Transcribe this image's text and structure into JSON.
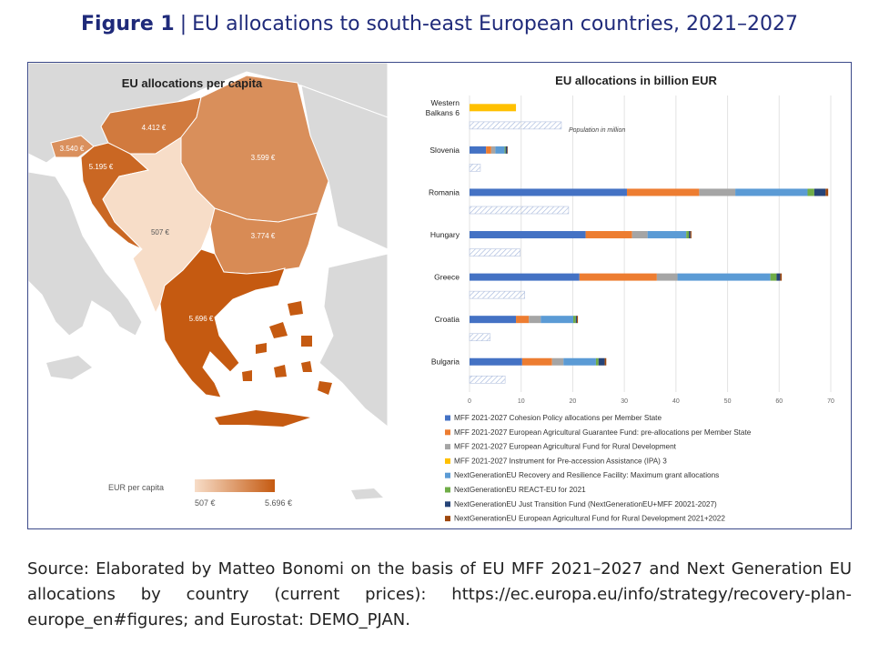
{
  "figure": {
    "label": "Figure 1",
    "separator": "|",
    "title": "EU allocations to south-east European countries, 2021–2027",
    "source": "Source: Elaborated by Matteo Bonomi on the basis of EU MFF 2021–2027 and Next Generation EU allocations by country (current prices): https://ec.europa.eu/info/strategy/recovery-plan-europe_en#figures; and Eurostat: DEMO_PJAN."
  },
  "colors": {
    "frame": "#3c4a8a",
    "title": "#1f2a7a",
    "map_land_other": "#d9d9d9",
    "map_sea": "#ffffff",
    "map_scale_low": "#f7ddc8",
    "map_scale_high": "#c55a11"
  },
  "chart_data": [
    {
      "type": "heatmap",
      "title": "EU allocations per capita",
      "unit": "€",
      "labels": [
        "4.412 €",
        "3.540 €",
        "5.195 €",
        "3.599 €",
        "507 €",
        "3.774 €",
        "5.696 €"
      ],
      "values": [
        4412,
        3540,
        5195,
        3599,
        507,
        3774,
        5696
      ],
      "legend": {
        "title": "EUR per capita",
        "min_label": "507 €",
        "max_label": "5.696 €",
        "min": 507,
        "max": 5696
      }
    },
    {
      "type": "bar",
      "orientation": "horizontal",
      "stacked": true,
      "title": "EU allocations in billion EUR",
      "categories": [
        "Western Balkans 6",
        "Slovenia",
        "Romania",
        "Hungary",
        "Greece",
        "Croatia",
        "Bulgaria"
      ],
      "category_lines": [
        [
          "Western",
          "Balkans 6"
        ],
        [
          "Slovenia"
        ],
        [
          "Romania"
        ],
        [
          "Hungary"
        ],
        [
          "Greece"
        ],
        [
          "Croatia"
        ],
        [
          "Bulgaria"
        ]
      ],
      "xlim": [
        0,
        70
      ],
      "xticks": [
        0,
        10,
        20,
        30,
        40,
        50,
        60,
        70
      ],
      "grid": true,
      "legend_position": "bottom",
      "series": [
        {
          "name": "MFF 2021-2027 Cohesion Policy allocations per Member State",
          "color": "#4472c4",
          "values": [
            0,
            3.2,
            30.5,
            22.5,
            21.3,
            9.0,
            10.2
          ]
        },
        {
          "name": "MFF 2021-2027 European Agricultural Guarantee Fund: pre-allocations per Member State",
          "color": "#ed7d31",
          "values": [
            0,
            1.0,
            14.0,
            9.0,
            15.0,
            2.5,
            5.8
          ]
        },
        {
          "name": "MFF 2021-2027 European Agricultural Fund for Rural Development",
          "color": "#a5a5a5",
          "values": [
            0,
            0.8,
            7.0,
            3.0,
            4.0,
            2.3,
            2.2
          ]
        },
        {
          "name": "MFF 2021-2027 Instrument for Pre-accession Assistance (IPA) 3",
          "color": "#ffc000",
          "values": [
            9.0,
            0,
            0,
            0,
            0,
            0,
            0
          ]
        },
        {
          "name": "NextGenerationEU Recovery and Resilience Facility: Maximum grant allocations",
          "color": "#5b9bd5",
          "values": [
            0,
            1.8,
            14.0,
            7.5,
            18.0,
            6.3,
            6.3
          ]
        },
        {
          "name": "NextGenerationEU REACT-EU for 2021",
          "color": "#70ad47",
          "values": [
            0,
            0.2,
            1.3,
            0.5,
            1.2,
            0.5,
            0.5
          ]
        },
        {
          "name": "NextGenerationEU Just Transition Fund (NextGenerationEU+MFF 20021-2027)",
          "color": "#264478",
          "values": [
            0,
            0.3,
            2.2,
            0.3,
            0.7,
            0.2,
            1.2
          ]
        },
        {
          "name": "NextGenerationEU European Agricultural Fund for Rural Development 2021+2022",
          "color": "#9e480e",
          "values": [
            0,
            0.1,
            0.5,
            0.2,
            0.3,
            0.2,
            0.3
          ]
        }
      ],
      "population": {
        "name": "Population in million",
        "values": [
          17.8,
          2.1,
          19.2,
          9.8,
          10.7,
          4.0,
          6.9
        ]
      }
    }
  ]
}
